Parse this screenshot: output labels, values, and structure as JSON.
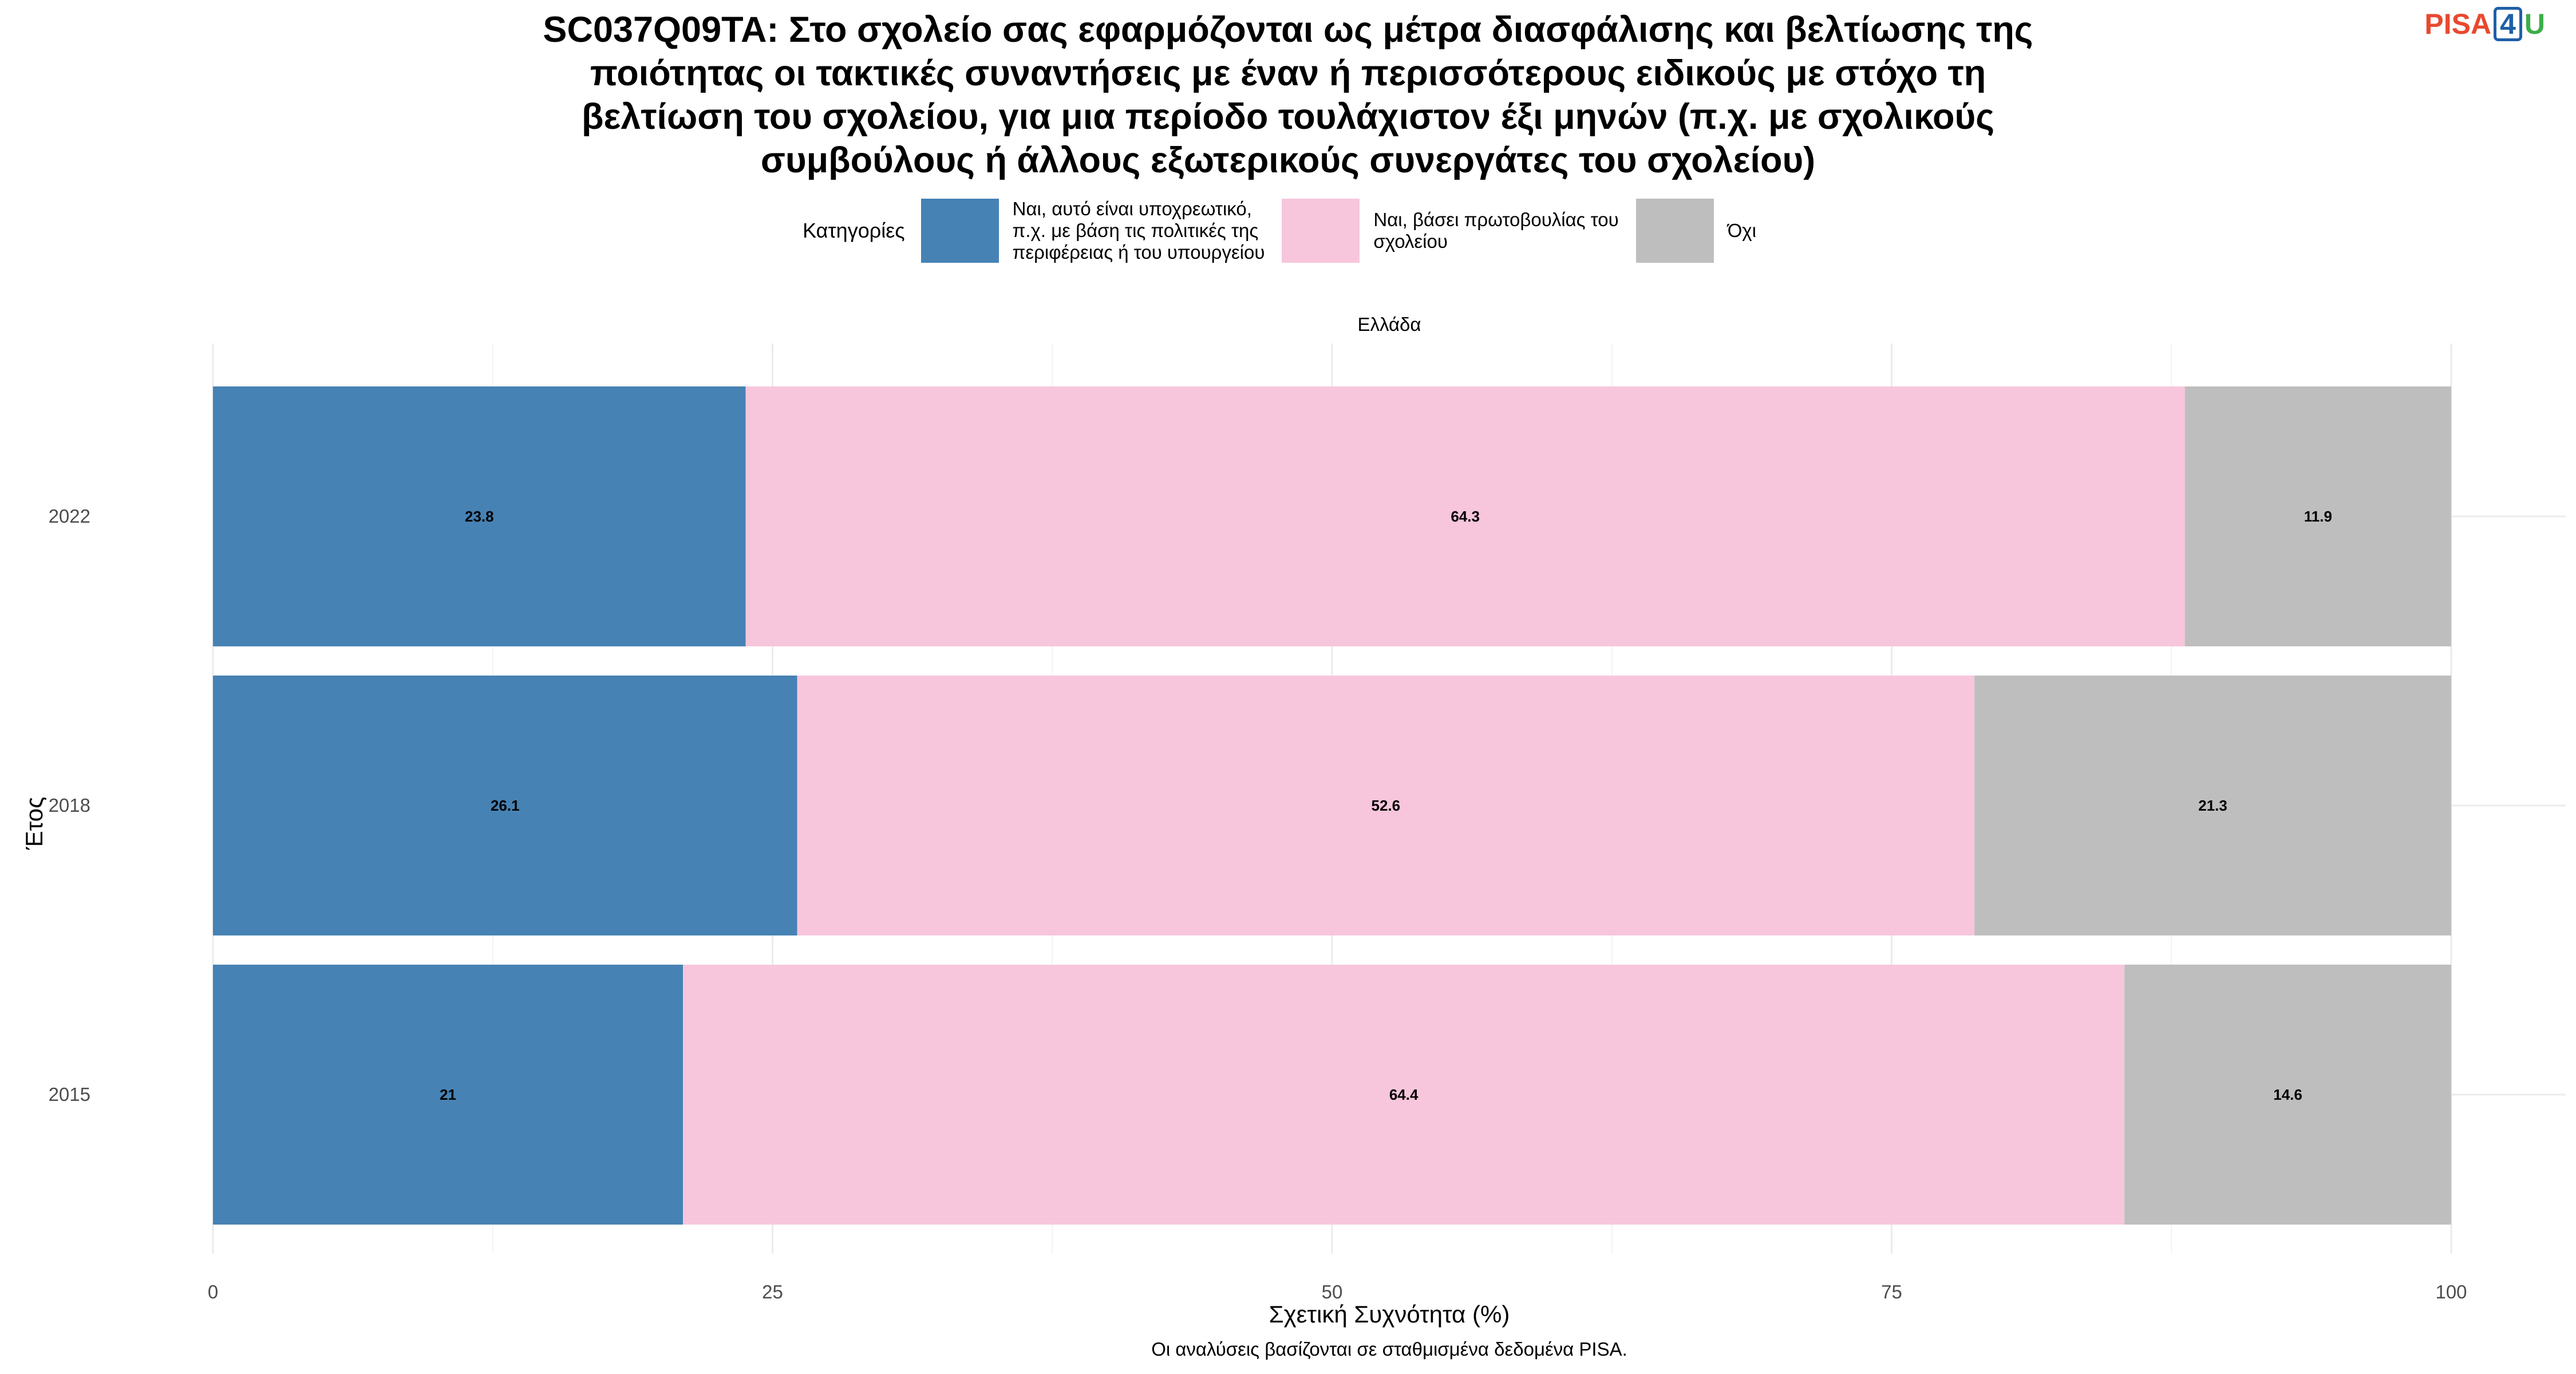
{
  "title": "SC037Q09TA: Στο σχολείο σας εφαρμόζονται ως μέτρα διασφάλισης και βελτίωσης της ποιότητας οι τακτικές συναντήσεις με έναν ή περισσότερους ειδικούς με στόχο τη βελτίωση του σχολείου, για μια περίοδο τουλάχιστον έξι μηνών (π.χ. με σχολικούς συμβούλους ή άλλους εξωτερικούς συνεργάτες του σχολείου)",
  "title_lines": [
    "SC037Q09TA: Στο σχολείο σας εφαρμόζονται ως μέτρα διασφάλισης και βελτίωσης της",
    "ποιότητας οι τακτικές συναντήσεις με έναν ή περισσότερους ειδικούς με στόχο τη",
    "βελτίωση του σχολείου, για μια περίοδο τουλάχιστον έξι μηνών (π.χ. με σχολικούς",
    "συμβούλους ή άλλους εξωτερικούς συνεργάτες του σχολείου)"
  ],
  "logo": {
    "part1": "PISA",
    "part2": "4",
    "part3": "U"
  },
  "legend": {
    "title": "Κατηγορίες",
    "items": [
      {
        "label_lines": [
          "Ναι, αυτό είναι υποχρεωτικό,",
          "π.χ. με βάση τις πολιτικές της",
          "περιφέρειας ή του υπουργείου"
        ],
        "color": "#4682b4"
      },
      {
        "label_lines": [
          "Ναι, βάσει πρωτοβουλίας του",
          "σχολείου"
        ],
        "color": "#f7c6dc"
      },
      {
        "label_lines": [
          "Όχι"
        ],
        "color": "#bebebe"
      }
    ]
  },
  "facet_label": "Ελλάδα",
  "caption": "Οι αναλύσεις βασίζονται σε σταθμισμένα δεδομένα PISA.",
  "chart_data": {
    "type": "bar",
    "orientation": "horizontal",
    "stacked": true,
    "categories": [
      "2022",
      "2018",
      "2015"
    ],
    "series": [
      {
        "name": "Ναι, αυτό είναι υποχρεωτικό, π.χ. με βάση τις πολιτικές της περιφέρειας ή του υπουργείου",
        "values": [
          23.8,
          26.1,
          21
        ],
        "labels": [
          "23.8",
          "26.1",
          "21"
        ],
        "color": "#4682b4"
      },
      {
        "name": "Ναι, βάσει πρωτοβουλίας του σχολείου",
        "values": [
          64.3,
          52.6,
          64.4
        ],
        "labels": [
          "64.3",
          "52.6",
          "64.4"
        ],
        "color": "#f7c6dc"
      },
      {
        "name": "Όχι",
        "values": [
          11.9,
          21.3,
          14.6
        ],
        "labels": [
          "11.9",
          "21.3",
          "14.6"
        ],
        "color": "#bebebe"
      }
    ],
    "xlabel": "Σχετική Συχνότητα (%)",
    "ylabel": "Έτος",
    "xlim": [
      0,
      100
    ],
    "xticks": [
      0,
      25,
      50,
      75,
      100
    ],
    "grid": true,
    "legend_position": "top"
  }
}
